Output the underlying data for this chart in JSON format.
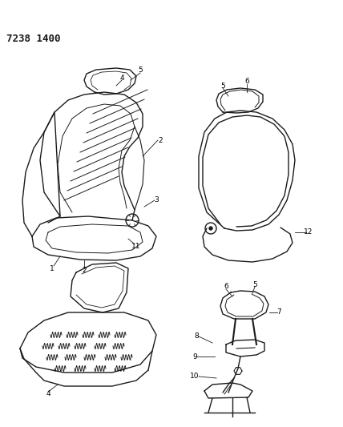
{
  "title": "7238 1400",
  "bg_color": "#ffffff",
  "lc": "#1a1a1a",
  "fig_width": 4.28,
  "fig_height": 5.33,
  "dpi": 100,
  "lw": 1.0,
  "label_fontsize": 6.5,
  "header_fontsize": 9.0
}
